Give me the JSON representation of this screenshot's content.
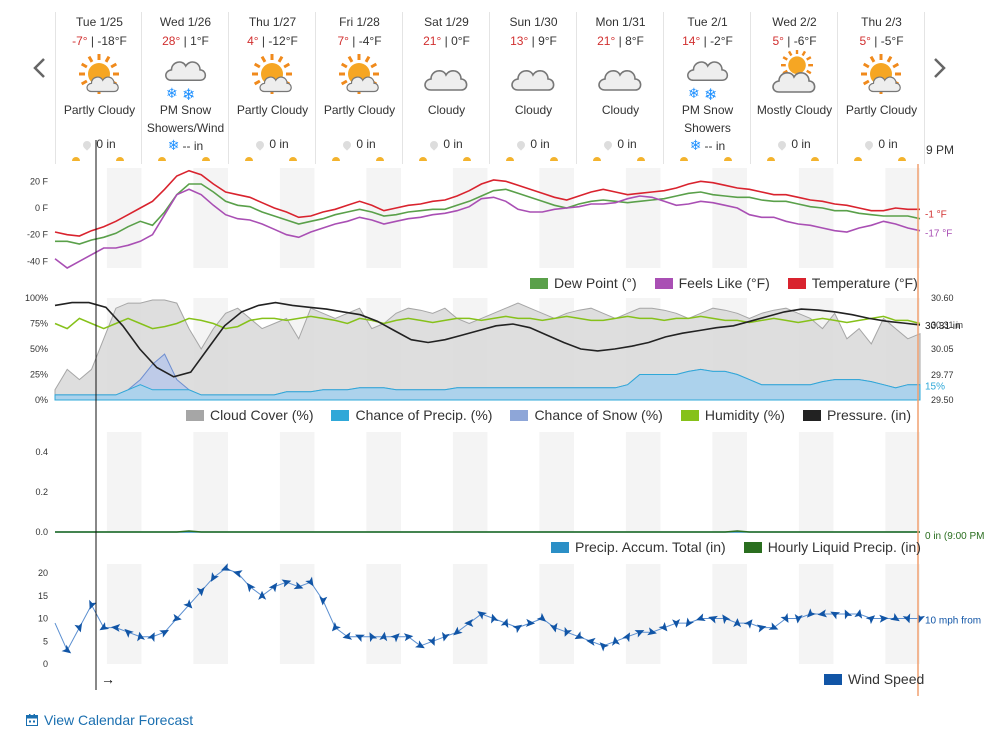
{
  "navigation": {
    "prev_label": "previous",
    "next_label": "next"
  },
  "days": [
    {
      "date": "Tue 1/25",
      "hi": "-7°",
      "lo": "-18°F",
      "condition": "Partly Cloudy",
      "icon": "partly-cloudy-icon",
      "precip": "0 in",
      "precip_icon": "drop-icon"
    },
    {
      "date": "Wed 1/26",
      "hi": "28°",
      "lo": "1°F",
      "condition": "PM Snow Showers/Wind",
      "icon": "snow-icon",
      "precip": "-- in",
      "precip_icon": "snowflake-icon"
    },
    {
      "date": "Thu 1/27",
      "hi": "4°",
      "lo": "-12°F",
      "condition": "Partly Cloudy",
      "icon": "partly-cloudy-icon",
      "precip": "0 in",
      "precip_icon": "drop-icon"
    },
    {
      "date": "Fri 1/28",
      "hi": "7°",
      "lo": "-4°F",
      "condition": "Partly Cloudy",
      "icon": "partly-cloudy-icon",
      "precip": "0 in",
      "precip_icon": "drop-icon"
    },
    {
      "date": "Sat 1/29",
      "hi": "21°",
      "lo": "0°F",
      "condition": "Cloudy",
      "icon": "cloudy-icon",
      "precip": "0 in",
      "precip_icon": "drop-icon"
    },
    {
      "date": "Sun 1/30",
      "hi": "13°",
      "lo": "9°F",
      "condition": "Cloudy",
      "icon": "cloudy-icon",
      "precip": "0 in",
      "precip_icon": "drop-icon"
    },
    {
      "date": "Mon 1/31",
      "hi": "21°",
      "lo": "8°F",
      "condition": "Cloudy",
      "icon": "cloudy-icon",
      "precip": "0 in",
      "precip_icon": "drop-icon"
    },
    {
      "date": "Tue 2/1",
      "hi": "14°",
      "lo": "-2°F",
      "condition": "PM Snow Showers",
      "icon": "snow-icon",
      "precip": "-- in",
      "precip_icon": "snowflake-icon"
    },
    {
      "date": "Wed 2/2",
      "hi": "5°",
      "lo": "-6°F",
      "condition": "Mostly Cloudy",
      "icon": "mostly-cloudy-icon",
      "precip": "0 in",
      "precip_icon": "drop-icon"
    },
    {
      "date": "Thu 2/3",
      "hi": "5°",
      "lo": "-5°F",
      "condition": "Partly Cloudy",
      "icon": "partly-cloudy-icon",
      "precip": "0 in",
      "precip_icon": "drop-icon"
    }
  ],
  "current_time_label": "9 PM",
  "colors": {
    "dew_point": "#5aa04a",
    "feels_like": "#a94fb4",
    "temperature": "#d9232e",
    "cloud_cover": "#a6a6a6",
    "chance_precip": "#2fa8d8",
    "chance_snow": "#8ea6d8",
    "humidity": "#86c11a",
    "pressure": "#222222",
    "precip_total": "#2b8fc6",
    "hourly_liquid": "#2a6e1f",
    "wind_speed": "#1155a6",
    "now_line": "#f0a070"
  },
  "chart_data": [
    {
      "type": "line",
      "id": "temperature",
      "yticks": [
        "20 F",
        "0 F",
        "-20 F",
        "-40 F"
      ],
      "ylim": [
        -45,
        30
      ],
      "x_days": 10,
      "series": [
        {
          "name": "Dew Point (°)",
          "values": [
            -25,
            -25,
            -27,
            -24,
            -22,
            -19,
            -14,
            -10,
            -13,
            -3,
            10,
            18,
            18,
            12,
            5,
            2,
            1,
            -3,
            -6,
            -9,
            -12,
            -10,
            -8,
            -5,
            -3,
            -1,
            -3,
            -6,
            -5,
            -3,
            -2,
            -1,
            -1,
            2,
            5,
            9,
            13,
            14,
            11,
            8,
            5,
            2,
            0,
            3,
            5,
            6,
            5,
            4,
            5,
            6,
            7,
            9,
            11,
            12,
            10,
            9,
            8,
            8,
            6,
            5,
            5,
            3,
            1,
            0,
            -2,
            -2,
            -4,
            -5,
            -6,
            -6,
            -6,
            -8
          ]
        },
        {
          "name": "Feels Like (°F)",
          "values": [
            -38,
            -45,
            -40,
            -35,
            -30,
            -30,
            -28,
            -25,
            -20,
            -5,
            10,
            14,
            10,
            2,
            -5,
            -8,
            -9,
            -12,
            -16,
            -20,
            -22,
            -18,
            -15,
            -12,
            -10,
            -7,
            -9,
            -12,
            -10,
            -8,
            -7,
            -5,
            -4,
            -2,
            1,
            7,
            8,
            5,
            -1,
            -3,
            -3,
            -1,
            0,
            1,
            3,
            3,
            4,
            7,
            9,
            8,
            5,
            2,
            3,
            5,
            4,
            2,
            0,
            -5,
            -7,
            -7,
            -10,
            -12,
            -13,
            -15,
            -17,
            -18,
            -15,
            -13,
            -10,
            -12,
            -15,
            -17
          ]
        },
        {
          "name": "Temperature (°F)",
          "values": [
            -18,
            -20,
            -21,
            -17,
            -14,
            -10,
            -5,
            0,
            5,
            14,
            24,
            28,
            25,
            18,
            12,
            10,
            8,
            4,
            0,
            -3,
            -7,
            -6,
            -3,
            -1,
            2,
            5,
            2,
            -2,
            0,
            2,
            3,
            5,
            6,
            9,
            13,
            18,
            21,
            20,
            17,
            14,
            11,
            8,
            6,
            9,
            12,
            14,
            12,
            10,
            11,
            12,
            13,
            15,
            18,
            20,
            19,
            17,
            15,
            14,
            12,
            10,
            10,
            8,
            6,
            5,
            3,
            2,
            0,
            -2,
            -2,
            0,
            -1,
            -1
          ]
        }
      ],
      "end_labels": [
        "-1 °F",
        "-17 °F"
      ]
    },
    {
      "type": "area",
      "id": "sky",
      "yticks": [
        "100%",
        "75%",
        "50%",
        "25%",
        "0%"
      ],
      "right_ticks": [
        "30.60",
        "30.31 in",
        "30.05",
        "29.77",
        "29.50"
      ],
      "ylim": [
        0,
        100
      ],
      "series": [
        {
          "name": "Cloud Cover (%)",
          "values": [
            10,
            30,
            20,
            30,
            60,
            90,
            95,
            95,
            98,
            98,
            95,
            70,
            50,
            70,
            85,
            90,
            80,
            70,
            75,
            80,
            60,
            90,
            85,
            80,
            85,
            90,
            70,
            75,
            85,
            90,
            88,
            85,
            90,
            80,
            75,
            80,
            85,
            90,
            95,
            90,
            85,
            80,
            85,
            88,
            90,
            85,
            80,
            85,
            90,
            90,
            88,
            85,
            80,
            85,
            90,
            88,
            85,
            80,
            85,
            88,
            90,
            85,
            80,
            70,
            85,
            60,
            70,
            55,
            80,
            70,
            60,
            65
          ]
        },
        {
          "name": "Chance of Precip. (%)",
          "values": [
            5,
            5,
            5,
            5,
            5,
            5,
            10,
            15,
            10,
            10,
            10,
            10,
            5,
            5,
            5,
            5,
            5,
            5,
            5,
            8,
            8,
            8,
            10,
            10,
            10,
            12,
            12,
            12,
            10,
            10,
            10,
            10,
            10,
            12,
            12,
            12,
            12,
            12,
            12,
            12,
            12,
            12,
            12,
            12,
            12,
            12,
            12,
            15,
            25,
            25,
            25,
            25,
            28,
            30,
            28,
            28,
            25,
            20,
            15,
            15,
            15,
            15,
            15,
            18,
            20,
            20,
            20,
            18,
            15,
            12,
            15,
            15
          ]
        },
        {
          "name": "Chance of Snow (%)",
          "values": [
            5,
            5,
            5,
            5,
            5,
            5,
            10,
            20,
            35,
            45,
            20,
            10,
            5,
            5,
            5,
            5,
            5,
            5,
            5,
            8,
            8,
            8,
            10,
            10,
            10,
            12,
            12,
            12,
            10,
            10,
            10,
            10,
            10,
            12,
            12,
            12,
            12,
            12,
            12,
            12,
            12,
            12,
            12,
            12,
            12,
            12,
            12,
            15,
            25,
            25,
            25,
            25,
            28,
            30,
            28,
            28,
            25,
            20,
            15,
            15,
            15,
            15,
            15,
            18,
            20,
            20,
            20,
            18,
            15,
            12,
            15,
            15
          ]
        },
        {
          "name": "Humidity (%)",
          "values": [
            75,
            70,
            80,
            75,
            70,
            75,
            80,
            75,
            70,
            72,
            75,
            80,
            78,
            75,
            70,
            72,
            78,
            80,
            80,
            78,
            80,
            82,
            80,
            78,
            75,
            80,
            78,
            75,
            78,
            80,
            78,
            76,
            78,
            80,
            80,
            78,
            80,
            82,
            80,
            80,
            78,
            80,
            82,
            80,
            78,
            78,
            80,
            82,
            80,
            80,
            78,
            80,
            80,
            82,
            80,
            78,
            78,
            76,
            78,
            80,
            78,
            76,
            78,
            80,
            78,
            76,
            78,
            80,
            82,
            78,
            78,
            75
          ]
        },
        {
          "name": "Pressure. (in)",
          "values": [
            30.52,
            30.55,
            30.55,
            30.5,
            30.3,
            30.05,
            29.85,
            29.75,
            29.8,
            30.05,
            30.3,
            30.45,
            30.52,
            30.55,
            30.52,
            30.5,
            30.48,
            30.45,
            30.42,
            30.35,
            30.25,
            30.15,
            30.12,
            30.15,
            30.2,
            30.25,
            30.3,
            30.32,
            30.28,
            30.2,
            30.12,
            30.05,
            30.03,
            30.05,
            30.08,
            30.12,
            30.18,
            30.22,
            30.25,
            30.28,
            30.3,
            30.35,
            30.4,
            30.45,
            30.48,
            30.47,
            30.45,
            30.42,
            30.38,
            30.35,
            30.33,
            30.31
          ]
        }
      ],
      "end_labels": [
        "30.31 in",
        "15%"
      ]
    },
    {
      "type": "line",
      "id": "precip",
      "yticks": [
        "0.4",
        "0.2",
        "0.0"
      ],
      "ylim": [
        0,
        0.5
      ],
      "series": [
        {
          "name": "Precip. Accum. Total (in)",
          "values": [
            0,
            0,
            0,
            0,
            0,
            0,
            0,
            0,
            0,
            0,
            0,
            0,
            0,
            0,
            0,
            0,
            0,
            0,
            0,
            0,
            0,
            0,
            0,
            0,
            0,
            0,
            0,
            0,
            0,
            0,
            0,
            0,
            0,
            0,
            0,
            0,
            0,
            0,
            0,
            0,
            0,
            0,
            0,
            0,
            0,
            0,
            0,
            0,
            0,
            0,
            0,
            0,
            0,
            0,
            0,
            0,
            0,
            0,
            0,
            0,
            0,
            0,
            0,
            0,
            0,
            0,
            0,
            0,
            0,
            0,
            0,
            0
          ]
        },
        {
          "name": "Hourly Liquid Precip. (in)",
          "values": [
            0,
            0,
            0,
            0,
            0,
            0,
            0,
            0,
            0,
            0,
            0,
            0.005,
            0,
            0,
            0,
            0,
            0,
            0,
            0,
            0,
            0,
            0,
            0,
            0,
            0,
            0,
            0,
            0,
            0,
            0,
            0,
            0,
            0,
            0,
            0,
            0,
            0,
            0,
            0,
            0,
            0,
            0,
            0,
            0,
            0,
            0,
            0,
            0,
            0,
            0,
            0,
            0,
            0,
            0,
            0,
            0,
            0.005,
            0,
            0,
            0,
            0,
            0,
            0,
            0,
            0,
            0,
            0,
            0,
            0,
            0,
            0,
            0
          ]
        }
      ],
      "end_labels": [
        "0 in (9:00 PM"
      ]
    },
    {
      "type": "line",
      "id": "wind",
      "yticks": [
        "20",
        "15",
        "10",
        "5",
        "0"
      ],
      "ylim": [
        0,
        22
      ],
      "series": [
        {
          "name": "Wind Speed",
          "values": [
            9,
            3,
            8,
            13,
            8,
            8,
            7,
            6,
            6,
            7,
            10,
            13,
            16,
            19,
            21,
            20,
            17,
            15,
            17,
            18,
            17,
            18,
            14,
            8,
            6,
            6,
            6,
            6,
            6,
            6,
            4,
            5,
            6,
            7,
            9,
            11,
            10,
            9,
            8,
            9,
            10,
            8,
            7,
            6,
            5,
            4,
            5,
            6,
            7,
            7,
            8,
            9,
            9,
            10,
            10,
            10,
            9,
            9,
            8,
            8,
            10,
            10,
            11,
            11,
            11,
            11,
            11,
            10,
            10,
            10,
            10,
            10
          ]
        }
      ],
      "end_labels": [
        "10 mph from"
      ]
    }
  ],
  "legends": {
    "temperature": [
      "Dew Point (°)",
      "Feels Like (°F)",
      "Temperature (°F)"
    ],
    "sky": [
      "Cloud Cover (%)",
      "Chance of Precip. (%)",
      "Chance of Snow (%)",
      "Humidity (%)",
      "Pressure. (in)"
    ],
    "precip": [
      "Precip. Accum. Total (in)",
      "Hourly Liquid Precip. (in)"
    ],
    "wind": [
      "Wind Speed"
    ]
  },
  "arrow_label": "→",
  "footer": {
    "calendar_link": "View Calendar Forecast",
    "calendar_icon": "calendar-icon"
  }
}
